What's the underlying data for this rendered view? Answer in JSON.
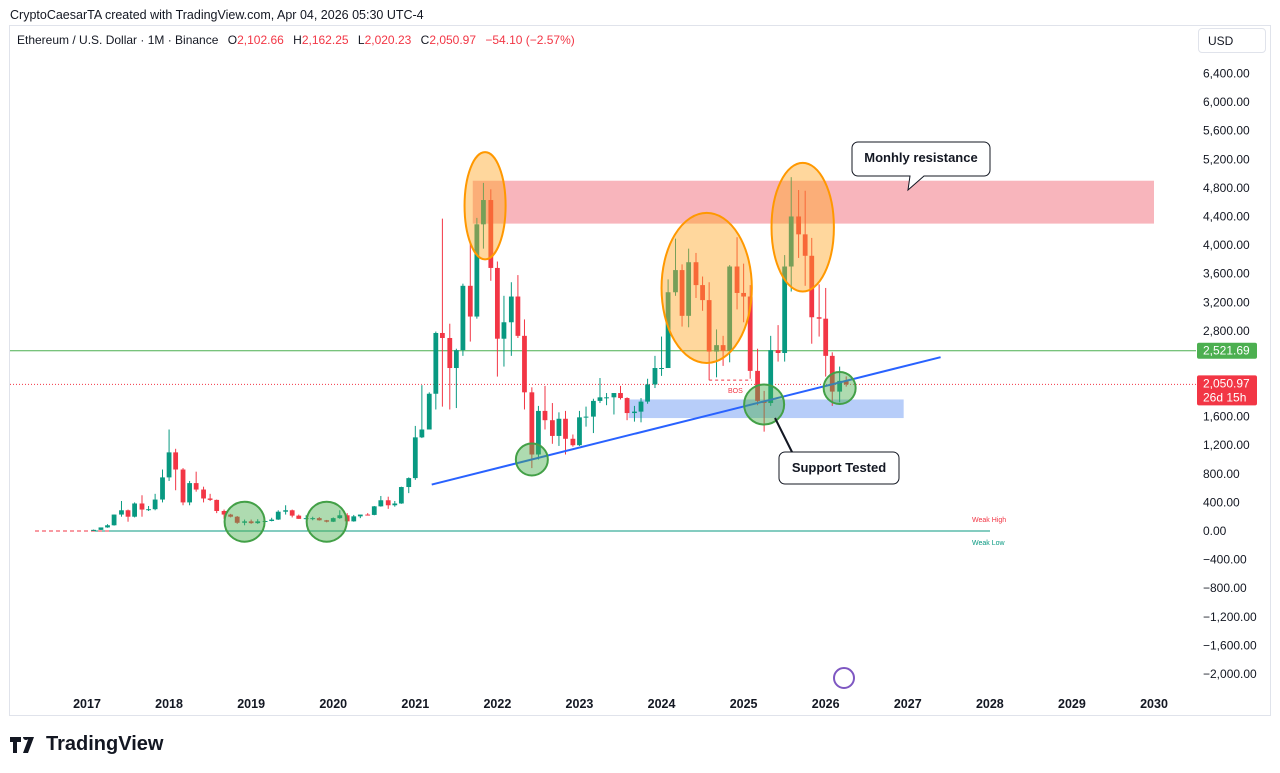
{
  "header": {
    "author_line": "CryptoCaesarTA created with TradingView.com, Apr 04, 2026 05:30 UTC-4"
  },
  "legend": {
    "symbol": "Ethereum / U.S. Dollar · 1M · Binance",
    "o_label": "O",
    "o": "2,102.66",
    "h_label": "H",
    "h": "2,162.25",
    "l_label": "L",
    "l": "2,020.23",
    "c_label": "C",
    "c": "2,050.97",
    "change": "−54.10 (−2.57%)"
  },
  "currency": "USD",
  "colors": {
    "up": "#089981",
    "down": "#f23645",
    "trendline": "#2962ff",
    "resistance": "#f7a8b0",
    "support": "#a5c1f7"
  },
  "chart_data": {
    "type": "candlestick",
    "x_ticks": [
      "2017",
      "2018",
      "2019",
      "2020",
      "2021",
      "2022",
      "2023",
      "2024",
      "2025",
      "2026",
      "2027",
      "2028",
      "2029",
      "2030"
    ],
    "y_ticks": [
      "6,400.00",
      "6,000.00",
      "5,600.00",
      "5,200.00",
      "4,800.00",
      "4,400.00",
      "4,000.00",
      "3,600.00",
      "3,200.00",
      "2,800.00",
      "1,600.00",
      "1,200.00",
      "800.00",
      "400.00",
      "0.00",
      "−400.00",
      "−800.00",
      "−1,200.00",
      "−1,600.00",
      "−2,000.00"
    ],
    "y_tick_values": [
      6400,
      6000,
      5600,
      5200,
      4800,
      4400,
      4000,
      3600,
      3200,
      2800,
      1600,
      1200,
      800,
      400,
      0,
      -400,
      -800,
      -1200,
      -1600,
      -2000
    ],
    "ylim": [
      -2200,
      6700
    ],
    "xlim": [
      2016.5,
      2030.5
    ],
    "candles": [
      {
        "t": 2017.08,
        "o": 8,
        "h": 20,
        "l": 7,
        "c": 16
      },
      {
        "t": 2017.17,
        "o": 16,
        "h": 40,
        "l": 14,
        "c": 50
      },
      {
        "t": 2017.25,
        "o": 50,
        "h": 95,
        "l": 45,
        "c": 80
      },
      {
        "t": 2017.33,
        "o": 80,
        "h": 230,
        "l": 75,
        "c": 230
      },
      {
        "t": 2017.42,
        "o": 230,
        "h": 420,
        "l": 200,
        "c": 290
      },
      {
        "t": 2017.5,
        "o": 290,
        "h": 300,
        "l": 130,
        "c": 200
      },
      {
        "t": 2017.58,
        "o": 200,
        "h": 400,
        "l": 190,
        "c": 385
      },
      {
        "t": 2017.67,
        "o": 385,
        "h": 500,
        "l": 200,
        "c": 300
      },
      {
        "t": 2017.75,
        "o": 300,
        "h": 350,
        "l": 280,
        "c": 305
      },
      {
        "t": 2017.83,
        "o": 305,
        "h": 520,
        "l": 290,
        "c": 440
      },
      {
        "t": 2017.92,
        "o": 440,
        "h": 860,
        "l": 400,
        "c": 750
      },
      {
        "t": 2018.0,
        "o": 750,
        "h": 1420,
        "l": 700,
        "c": 1100
      },
      {
        "t": 2018.08,
        "o": 1100,
        "h": 1150,
        "l": 570,
        "c": 860
      },
      {
        "t": 2018.17,
        "o": 860,
        "h": 880,
        "l": 360,
        "c": 400
      },
      {
        "t": 2018.25,
        "o": 400,
        "h": 700,
        "l": 360,
        "c": 670
      },
      {
        "t": 2018.33,
        "o": 670,
        "h": 830,
        "l": 550,
        "c": 580
      },
      {
        "t": 2018.42,
        "o": 580,
        "h": 620,
        "l": 400,
        "c": 455
      },
      {
        "t": 2018.5,
        "o": 455,
        "h": 520,
        "l": 420,
        "c": 435
      },
      {
        "t": 2018.58,
        "o": 435,
        "h": 440,
        "l": 250,
        "c": 280
      },
      {
        "t": 2018.67,
        "o": 280,
        "h": 300,
        "l": 170,
        "c": 230
      },
      {
        "t": 2018.75,
        "o": 230,
        "h": 240,
        "l": 190,
        "c": 200
      },
      {
        "t": 2018.83,
        "o": 200,
        "h": 210,
        "l": 100,
        "c": 115
      },
      {
        "t": 2018.92,
        "o": 115,
        "h": 160,
        "l": 80,
        "c": 135
      },
      {
        "t": 2019.0,
        "o": 135,
        "h": 160,
        "l": 100,
        "c": 110
      },
      {
        "t": 2019.08,
        "o": 110,
        "h": 165,
        "l": 100,
        "c": 135
      },
      {
        "t": 2019.17,
        "o": 135,
        "h": 145,
        "l": 125,
        "c": 140
      },
      {
        "t": 2019.25,
        "o": 140,
        "h": 185,
        "l": 135,
        "c": 160
      },
      {
        "t": 2019.33,
        "o": 160,
        "h": 290,
        "l": 155,
        "c": 270
      },
      {
        "t": 2019.42,
        "o": 270,
        "h": 360,
        "l": 230,
        "c": 290
      },
      {
        "t": 2019.5,
        "o": 290,
        "h": 300,
        "l": 190,
        "c": 215
      },
      {
        "t": 2019.58,
        "o": 215,
        "h": 230,
        "l": 170,
        "c": 170
      },
      {
        "t": 2019.67,
        "o": 170,
        "h": 220,
        "l": 160,
        "c": 180
      },
      {
        "t": 2019.75,
        "o": 180,
        "h": 200,
        "l": 150,
        "c": 180
      },
      {
        "t": 2019.83,
        "o": 180,
        "h": 195,
        "l": 145,
        "c": 150
      },
      {
        "t": 2019.92,
        "o": 150,
        "h": 155,
        "l": 120,
        "c": 130
      },
      {
        "t": 2020.0,
        "o": 130,
        "h": 190,
        "l": 125,
        "c": 180
      },
      {
        "t": 2020.08,
        "o": 180,
        "h": 290,
        "l": 170,
        "c": 220
      },
      {
        "t": 2020.17,
        "o": 220,
        "h": 250,
        "l": 90,
        "c": 135
      },
      {
        "t": 2020.25,
        "o": 135,
        "h": 225,
        "l": 130,
        "c": 205
      },
      {
        "t": 2020.33,
        "o": 205,
        "h": 225,
        "l": 180,
        "c": 230
      },
      {
        "t": 2020.42,
        "o": 230,
        "h": 250,
        "l": 220,
        "c": 225
      },
      {
        "t": 2020.5,
        "o": 225,
        "h": 350,
        "l": 220,
        "c": 345
      },
      {
        "t": 2020.58,
        "o": 345,
        "h": 490,
        "l": 340,
        "c": 430
      },
      {
        "t": 2020.67,
        "o": 430,
        "h": 480,
        "l": 310,
        "c": 360
      },
      {
        "t": 2020.75,
        "o": 360,
        "h": 420,
        "l": 340,
        "c": 385
      },
      {
        "t": 2020.83,
        "o": 385,
        "h": 620,
        "l": 380,
        "c": 615
      },
      {
        "t": 2020.92,
        "o": 615,
        "h": 750,
        "l": 530,
        "c": 740
      },
      {
        "t": 2021.0,
        "o": 740,
        "h": 1470,
        "l": 715,
        "c": 1310
      },
      {
        "t": 2021.08,
        "o": 1310,
        "h": 2040,
        "l": 1300,
        "c": 1420
      },
      {
        "t": 2021.17,
        "o": 1420,
        "h": 1940,
        "l": 1420,
        "c": 1920
      },
      {
        "t": 2021.25,
        "o": 1920,
        "h": 2790,
        "l": 1700,
        "c": 2770
      },
      {
        "t": 2021.33,
        "o": 2770,
        "h": 4370,
        "l": 1740,
        "c": 2700
      },
      {
        "t": 2021.42,
        "o": 2700,
        "h": 2900,
        "l": 1700,
        "c": 2280
      },
      {
        "t": 2021.5,
        "o": 2280,
        "h": 2550,
        "l": 1720,
        "c": 2530
      },
      {
        "t": 2021.58,
        "o": 2530,
        "h": 3460,
        "l": 2450,
        "c": 3430
      },
      {
        "t": 2021.67,
        "o": 3430,
        "h": 4030,
        "l": 2650,
        "c": 3000
      },
      {
        "t": 2021.75,
        "o": 3000,
        "h": 4380,
        "l": 2970,
        "c": 4290
      },
      {
        "t": 2021.83,
        "o": 4290,
        "h": 4870,
        "l": 3950,
        "c": 4630
      },
      {
        "t": 2021.92,
        "o": 4630,
        "h": 4780,
        "l": 3500,
        "c": 3680
      },
      {
        "t": 2022.0,
        "o": 3680,
        "h": 3770,
        "l": 2160,
        "c": 2690
      },
      {
        "t": 2022.08,
        "o": 2690,
        "h": 3290,
        "l": 2300,
        "c": 2920
      },
      {
        "t": 2022.17,
        "o": 2920,
        "h": 3480,
        "l": 2450,
        "c": 3280
      },
      {
        "t": 2022.25,
        "o": 3280,
        "h": 3580,
        "l": 2700,
        "c": 2730
      },
      {
        "t": 2022.33,
        "o": 2730,
        "h": 2960,
        "l": 1700,
        "c": 1940
      },
      {
        "t": 2022.42,
        "o": 1940,
        "h": 2010,
        "l": 880,
        "c": 1070
      },
      {
        "t": 2022.5,
        "o": 1070,
        "h": 1750,
        "l": 1000,
        "c": 1680
      },
      {
        "t": 2022.58,
        "o": 1680,
        "h": 2030,
        "l": 1420,
        "c": 1550
      },
      {
        "t": 2022.67,
        "o": 1550,
        "h": 1790,
        "l": 1220,
        "c": 1330
      },
      {
        "t": 2022.75,
        "o": 1330,
        "h": 1660,
        "l": 1190,
        "c": 1570
      },
      {
        "t": 2022.83,
        "o": 1570,
        "h": 1680,
        "l": 1070,
        "c": 1290
      },
      {
        "t": 2022.92,
        "o": 1290,
        "h": 1350,
        "l": 1180,
        "c": 1200
      },
      {
        "t": 2023.0,
        "o": 1200,
        "h": 1680,
        "l": 1190,
        "c": 1590
      },
      {
        "t": 2023.08,
        "o": 1590,
        "h": 1740,
        "l": 1460,
        "c": 1600
      },
      {
        "t": 2023.17,
        "o": 1600,
        "h": 1850,
        "l": 1370,
        "c": 1820
      },
      {
        "t": 2023.25,
        "o": 1820,
        "h": 2140,
        "l": 1790,
        "c": 1870
      },
      {
        "t": 2023.33,
        "o": 1870,
        "h": 1930,
        "l": 1760,
        "c": 1870
      },
      {
        "t": 2023.42,
        "o": 1870,
        "h": 1930,
        "l": 1630,
        "c": 1930
      },
      {
        "t": 2023.5,
        "o": 1930,
        "h": 2030,
        "l": 1840,
        "c": 1860
      },
      {
        "t": 2023.58,
        "o": 1860,
        "h": 1870,
        "l": 1550,
        "c": 1650
      },
      {
        "t": 2023.67,
        "o": 1650,
        "h": 1750,
        "l": 1530,
        "c": 1670
      },
      {
        "t": 2023.75,
        "o": 1670,
        "h": 1860,
        "l": 1520,
        "c": 1810
      },
      {
        "t": 2023.83,
        "o": 1810,
        "h": 2130,
        "l": 1780,
        "c": 2050
      },
      {
        "t": 2023.92,
        "o": 2050,
        "h": 2450,
        "l": 2000,
        "c": 2280
      },
      {
        "t": 2024.0,
        "o": 2280,
        "h": 2720,
        "l": 2170,
        "c": 2280
      },
      {
        "t": 2024.08,
        "o": 2280,
        "h": 3520,
        "l": 2280,
        "c": 3340
      },
      {
        "t": 2024.17,
        "o": 3340,
        "h": 4090,
        "l": 3290,
        "c": 3650
      },
      {
        "t": 2024.25,
        "o": 3650,
        "h": 3730,
        "l": 2860,
        "c": 3010
      },
      {
        "t": 2024.33,
        "o": 3010,
        "h": 3950,
        "l": 2850,
        "c": 3760
      },
      {
        "t": 2024.42,
        "o": 3760,
        "h": 3890,
        "l": 3260,
        "c": 3440
      },
      {
        "t": 2024.5,
        "o": 3440,
        "h": 3560,
        "l": 3080,
        "c": 3230
      },
      {
        "t": 2024.58,
        "o": 3230,
        "h": 3480,
        "l": 2110,
        "c": 2510
      },
      {
        "t": 2024.67,
        "o": 2510,
        "h": 2820,
        "l": 2150,
        "c": 2600
      },
      {
        "t": 2024.75,
        "o": 2600,
        "h": 2730,
        "l": 2310,
        "c": 2520
      },
      {
        "t": 2024.83,
        "o": 2520,
        "h": 3720,
        "l": 2360,
        "c": 3700
      },
      {
        "t": 2024.92,
        "o": 3700,
        "h": 4110,
        "l": 3100,
        "c": 3330
      },
      {
        "t": 2025.0,
        "o": 3330,
        "h": 3740,
        "l": 2920,
        "c": 3280
      },
      {
        "t": 2025.08,
        "o": 3280,
        "h": 3440,
        "l": 2130,
        "c": 2240
      },
      {
        "t": 2025.17,
        "o": 2240,
        "h": 2550,
        "l": 1760,
        "c": 1820
      },
      {
        "t": 2025.25,
        "o": 1820,
        "h": 1960,
        "l": 1390,
        "c": 1790
      },
      {
        "t": 2025.33,
        "o": 1790,
        "h": 2730,
        "l": 1750,
        "c": 2530
      },
      {
        "t": 2025.42,
        "o": 2530,
        "h": 2880,
        "l": 2370,
        "c": 2490
      },
      {
        "t": 2025.5,
        "o": 2490,
        "h": 3860,
        "l": 2370,
        "c": 3700
      },
      {
        "t": 2025.58,
        "o": 3700,
        "h": 4950,
        "l": 3350,
        "c": 4400
      },
      {
        "t": 2025.67,
        "o": 4400,
        "h": 4770,
        "l": 3820,
        "c": 4150
      },
      {
        "t": 2025.75,
        "o": 4150,
        "h": 4760,
        "l": 3430,
        "c": 3850
      },
      {
        "t": 2025.83,
        "o": 3850,
        "h": 4100,
        "l": 2620,
        "c": 2990
      },
      {
        "t": 2025.92,
        "o": 2990,
        "h": 3450,
        "l": 2720,
        "c": 2970
      },
      {
        "t": 2026.0,
        "o": 2970,
        "h": 3400,
        "l": 2160,
        "c": 2450
      },
      {
        "t": 2026.08,
        "o": 2450,
        "h": 2500,
        "l": 1750,
        "c": 1950
      },
      {
        "t": 2026.17,
        "o": 1950,
        "h": 2300,
        "l": 1800,
        "c": 2100
      },
      {
        "t": 2026.25,
        "o": 2102.66,
        "h": 2162.25,
        "l": 2020.23,
        "c": 2050.97
      }
    ],
    "resistance_zone": {
      "t1": 2021.7,
      "t2": 2030.0,
      "y1": 4300,
      "y2": 4900
    },
    "support_zone": {
      "t1": 2023.6,
      "t2": 2026.95,
      "y1": 1580,
      "y2": 1840
    },
    "trendline": {
      "t1": 2021.2,
      "y1": 650,
      "t2": 2026.35,
      "y2": 2130
    },
    "green_level": 2521.69,
    "current_level": 2050.97,
    "zero_level": 0,
    "price_labels": {
      "green": "2,521.69",
      "current": "2,050.97",
      "countdown": "26d 15h"
    },
    "annotations": {
      "resistance_label": "Monhly resistance",
      "support_label": "Support Tested",
      "bos": "BOS",
      "weak_high": "Weak High",
      "weak_low": "Weak Low"
    },
    "orange_circles": [
      {
        "t": 2021.85,
        "y": 4550,
        "rt": 0.25,
        "ry": 750
      },
      {
        "t": 2024.55,
        "y": 3400,
        "rt": 0.55,
        "ry": 1050
      },
      {
        "t": 2025.72,
        "y": 4250,
        "rt": 0.38,
        "ry": 900
      }
    ],
    "green_circles": [
      {
        "t": 2018.92,
        "y": 130,
        "r": 20
      },
      {
        "t": 2019.92,
        "y": 130,
        "r": 20
      },
      {
        "t": 2022.42,
        "y": 1000,
        "r": 16
      },
      {
        "t": 2025.25,
        "y": 1770,
        "r": 20
      },
      {
        "t": 2026.17,
        "y": 2000,
        "r": 16
      }
    ]
  }
}
